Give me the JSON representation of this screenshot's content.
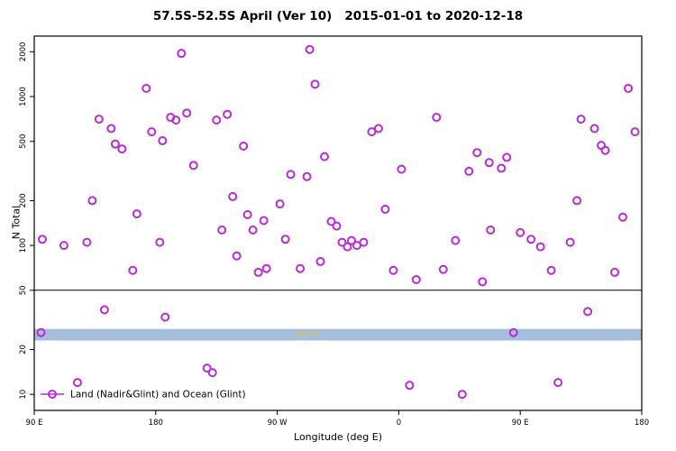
{
  "chart_data": {
    "type": "scatter",
    "title": "57.5S-52.5S April (Ver 10)   2015-01-01 to 2020-12-18",
    "xlabel": "Longitude (deg E)",
    "ylabel": "N Total",
    "x_range": [
      90,
      540
    ],
    "y_domain": [
      7.8,
      2548
    ],
    "x_ticks": [
      {
        "lon": 90,
        "label": "90 E"
      },
      {
        "lon": 180,
        "label": "180"
      },
      {
        "lon": 270,
        "label": "90 W"
      },
      {
        "lon": 360,
        "label": "0"
      },
      {
        "lon": 450,
        "label": "90 E"
      },
      {
        "lon": 540,
        "label": "180"
      }
    ],
    "y_ticks": [
      10,
      20,
      50,
      100,
      200,
      500,
      1000,
      2000
    ],
    "hline": 50,
    "band": {
      "from": 23,
      "to": 27.5,
      "color": "#a3bfda"
    },
    "marker_color": "#bb29d8",
    "legend": {
      "label": "Land (Nadir&Glint) and Ocean (Glint)",
      "marker_color": "#bb29d8"
    },
    "points": [
      [
        96,
        110
      ],
      [
        95,
        26
      ],
      [
        112,
        100
      ],
      [
        122,
        12
      ],
      [
        129,
        105
      ],
      [
        133,
        200
      ],
      [
        138,
        705
      ],
      [
        142,
        37
      ],
      [
        147,
        610
      ],
      [
        150,
        480
      ],
      [
        155,
        445
      ],
      [
        163,
        68
      ],
      [
        166,
        163
      ],
      [
        173,
        1135
      ],
      [
        177,
        580
      ],
      [
        183,
        105
      ],
      [
        185,
        505
      ],
      [
        187,
        33
      ],
      [
        191,
        725
      ],
      [
        195,
        695
      ],
      [
        199,
        1950
      ],
      [
        203,
        775
      ],
      [
        208,
        345
      ],
      [
        218,
        15
      ],
      [
        222,
        14
      ],
      [
        225,
        695
      ],
      [
        229,
        127
      ],
      [
        233,
        760
      ],
      [
        237,
        213
      ],
      [
        240,
        85
      ],
      [
        245,
        465
      ],
      [
        248,
        161
      ],
      [
        252,
        127
      ],
      [
        256,
        66
      ],
      [
        260,
        147
      ],
      [
        262,
        70
      ],
      [
        272,
        190
      ],
      [
        276,
        110
      ],
      [
        280,
        300
      ],
      [
        287,
        70
      ],
      [
        292,
        290
      ],
      [
        294,
        2070
      ],
      [
        298,
        1210
      ],
      [
        302,
        78
      ],
      [
        305,
        395
      ],
      [
        310,
        145
      ],
      [
        314,
        135
      ],
      [
        318,
        105
      ],
      [
        322,
        98
      ],
      [
        325,
        108
      ],
      [
        329,
        100
      ],
      [
        334,
        105
      ],
      [
        340,
        580
      ],
      [
        345,
        610
      ],
      [
        350,
        175
      ],
      [
        356,
        68
      ],
      [
        362,
        325
      ],
      [
        368,
        11.5
      ],
      [
        373,
        59
      ],
      [
        388,
        725
      ],
      [
        393,
        69
      ],
      [
        402,
        108
      ],
      [
        407,
        10
      ],
      [
        412,
        315
      ],
      [
        418,
        420
      ],
      [
        422,
        57
      ],
      [
        427,
        360
      ],
      [
        428,
        127
      ],
      [
        436,
        330
      ],
      [
        440,
        390
      ],
      [
        445,
        26
      ],
      [
        450,
        122
      ],
      [
        458,
        110
      ],
      [
        465,
        98
      ],
      [
        473,
        68
      ],
      [
        478,
        12
      ],
      [
        487,
        105
      ],
      [
        492,
        200
      ],
      [
        495,
        705
      ],
      [
        500,
        36
      ],
      [
        505,
        610
      ],
      [
        510,
        470
      ],
      [
        513,
        435
      ],
      [
        520,
        66
      ],
      [
        526,
        155
      ],
      [
        530,
        1135
      ],
      [
        535,
        580
      ]
    ],
    "orange_points": [
      [
        285,
        25
      ],
      [
        288,
        26
      ],
      [
        291,
        25
      ],
      [
        296,
        25.5
      ],
      [
        300,
        26
      ]
    ],
    "orange_color": "#f5b942"
  }
}
